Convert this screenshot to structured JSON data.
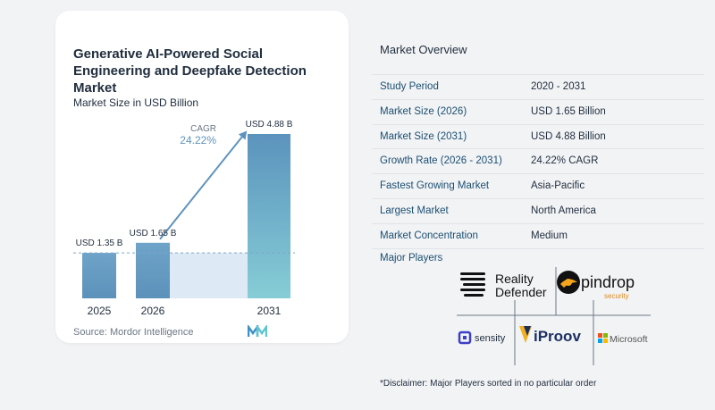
{
  "chart_data": {
    "type": "bar",
    "title": "Generative AI-Powered Social Engineering and Deepfake Detection Market",
    "subtitle": "Market Size in USD Billion",
    "categories": [
      "2025",
      "2026",
      "2031"
    ],
    "values": [
      1.35,
      1.65,
      4.88
    ],
    "data_labels": [
      "USD 1.35 B",
      "USD 1.65 B",
      "USD 4.88 B"
    ],
    "cagr_label": "CAGR",
    "cagr_value": "24.22%",
    "source": "Source: Mordor Intelligence",
    "colors": {
      "bar_top": "#6d9fc3",
      "bar_bottom": "#4f86b0",
      "tall_top": "#5b96c0",
      "tall_bottom": "#7cc8d6",
      "shade": "#dde9f4",
      "arrow": "#5e93bd"
    }
  },
  "overview": {
    "title": "Market Overview",
    "rows": [
      {
        "label": "Study Period",
        "value": "2020 - 2031"
      },
      {
        "label": "Market Size (2026)",
        "value": "USD 1.65 Billion"
      },
      {
        "label": "Market Size (2031)",
        "value": "USD 4.88 Billion"
      },
      {
        "label": "Growth Rate (2026 - 2031)",
        "value": "24.22% CAGR"
      },
      {
        "label": "Fastest Growing Market",
        "value": "Asia-Pacific"
      },
      {
        "label": "Largest Market",
        "value": "North America"
      },
      {
        "label": "Market Concentration",
        "value": "Medium"
      }
    ]
  },
  "players": {
    "title": "Major Players",
    "logos": {
      "reality_defender_line1": "Reality",
      "reality_defender_line2": "Defender",
      "pindrop": "pindrop",
      "pindrop_sub": "security",
      "sensity": "sensity",
      "iproov": "iProov",
      "microsoft": "Microsoft"
    }
  },
  "disclaimer": "*Disclaimer: Major Players sorted in no particular order"
}
